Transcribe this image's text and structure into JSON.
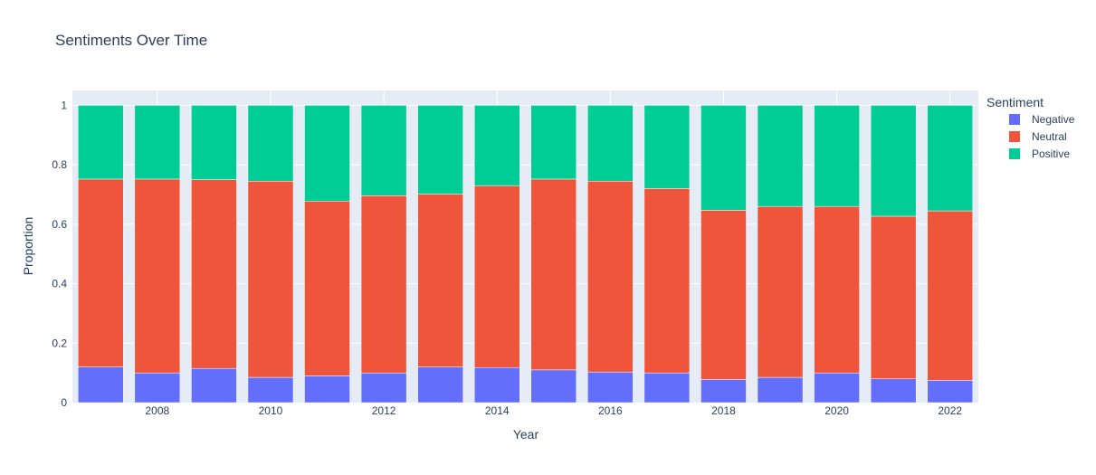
{
  "chart_data": {
    "type": "bar",
    "stacked": true,
    "title": "Sentiments Over Time",
    "xlabel": "Year",
    "ylabel": "Proportion",
    "x": [
      2007,
      2008,
      2009,
      2010,
      2011,
      2012,
      2013,
      2014,
      2015,
      2016,
      2017,
      2018,
      2019,
      2020,
      2021,
      2022
    ],
    "xticks": [
      "2008",
      "2010",
      "2012",
      "2014",
      "2016",
      "2018",
      "2020",
      "2022"
    ],
    "yticks": [
      "0",
      "0.2",
      "0.4",
      "0.6",
      "0.8",
      "1"
    ],
    "ylim": [
      0,
      1.05
    ],
    "legend": {
      "title": "Sentiment",
      "placement": "right"
    },
    "grid": true,
    "series": [
      {
        "name": "Negative",
        "color": "#636efa",
        "values": [
          0.12,
          0.1,
          0.115,
          0.085,
          0.09,
          0.1,
          0.12,
          0.118,
          0.11,
          0.103,
          0.1,
          0.078,
          0.085,
          0.1,
          0.08,
          0.075
        ]
      },
      {
        "name": "Neutral",
        "color": "#ef553b",
        "values": [
          0.632,
          0.652,
          0.635,
          0.66,
          0.588,
          0.596,
          0.582,
          0.612,
          0.642,
          0.642,
          0.62,
          0.569,
          0.575,
          0.56,
          0.547,
          0.57
        ]
      },
      {
        "name": "Positive",
        "color": "#00cc96",
        "values": [
          0.248,
          0.248,
          0.25,
          0.255,
          0.322,
          0.304,
          0.298,
          0.27,
          0.248,
          0.255,
          0.28,
          0.353,
          0.34,
          0.34,
          0.373,
          0.355
        ]
      }
    ]
  }
}
